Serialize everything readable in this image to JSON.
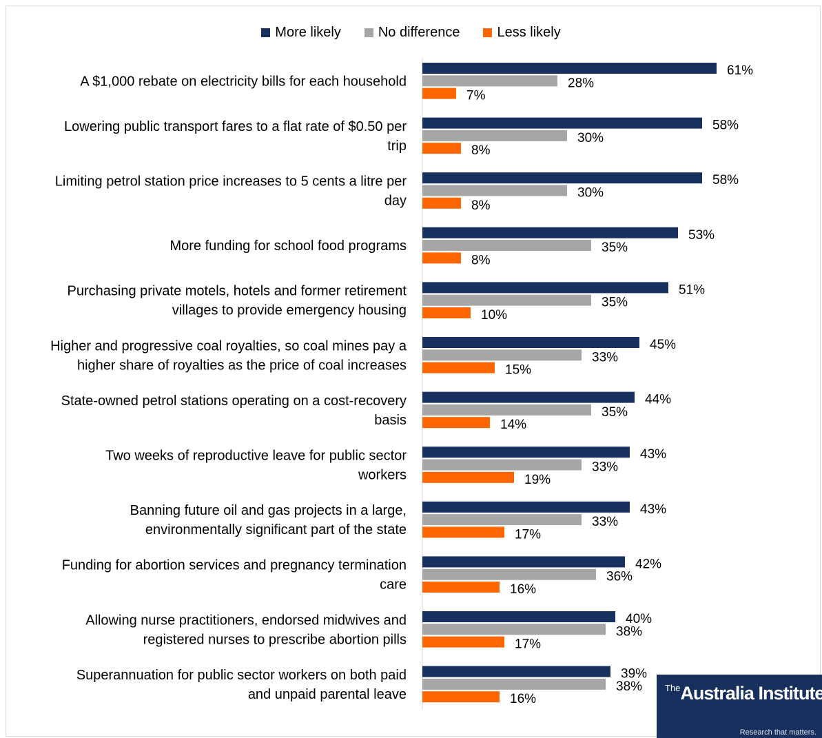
{
  "legend": {
    "more_likely": "More likely",
    "no_difference": "No difference",
    "less_likely": "Less likely"
  },
  "logo": {
    "name_prefix": "The",
    "name": "Australia Institute",
    "tagline": "Research that matters."
  },
  "colors": {
    "more_likely": "#17305d",
    "no_difference": "#a6a6a6",
    "less_likely": "#ff6600"
  },
  "chart_data": {
    "type": "bar",
    "orientation": "horizontal",
    "title": "",
    "xlabel": "",
    "ylabel": "",
    "xlim": [
      0,
      100
    ],
    "grid": false,
    "legend_position": "top",
    "value_format": "percent",
    "categories": [
      "A $1,000 rebate on electricity bills for each household",
      "Lowering public transport fares to a flat rate of $0.50 per trip",
      "Limiting petrol station price increases to 5 cents a litre per day",
      "More funding for school food programs",
      "Purchasing private motels, hotels and former retirement villages to provide emergency housing",
      "Higher and progressive coal royalties, so coal mines pay a higher share of royalties as the price of coal increases",
      "State-owned petrol stations operating on a cost-recovery basis",
      "Two weeks of reproductive leave for public sector workers",
      "Banning future oil and gas projects in a large, environmentally significant part of the state",
      "Funding for abortion services and pregnancy termination care",
      "Allowing nurse practitioners, endorsed midwives and registered nurses to prescribe abortion pills",
      "Superannuation for public sector workers on both paid and unpaid parental leave"
    ],
    "category_lines": [
      [
        "A $1,000 rebate on electricity bills for each household"
      ],
      [
        "Lowering public transport fares to a flat rate of $0.50 per",
        "trip"
      ],
      [
        "Limiting petrol station price increases to 5 cents a litre per",
        "day"
      ],
      [
        "More funding for school food programs"
      ],
      [
        "Purchasing private motels, hotels and former retirement",
        "villages to provide emergency housing"
      ],
      [
        "Higher and progressive coal royalties, so coal mines pay a",
        "higher share of royalties as the price of coal increases"
      ],
      [
        "State-owned petrol stations operating on a cost-recovery",
        "basis"
      ],
      [
        "Two weeks of reproductive leave for public sector",
        "workers"
      ],
      [
        "Banning future oil and gas projects in a large,",
        "environmentally significant part of the state"
      ],
      [
        "Funding for abortion services and pregnancy termination",
        "care"
      ],
      [
        "Allowing nurse practitioners, endorsed midwives and",
        "registered nurses to prescribe abortion pills"
      ],
      [
        "Superannuation for public sector workers on both paid",
        "and unpaid parental leave"
      ]
    ],
    "series": [
      {
        "name": "More likely",
        "color": "#17305d",
        "values": [
          61,
          58,
          58,
          53,
          51,
          45,
          44,
          43,
          43,
          42,
          40,
          39
        ]
      },
      {
        "name": "No difference",
        "color": "#a6a6a6",
        "values": [
          28,
          30,
          30,
          35,
          35,
          33,
          35,
          33,
          33,
          36,
          38,
          38
        ]
      },
      {
        "name": "Less likely",
        "color": "#ff6600",
        "values": [
          7,
          8,
          8,
          8,
          10,
          15,
          14,
          19,
          17,
          16,
          17,
          16
        ]
      }
    ]
  }
}
